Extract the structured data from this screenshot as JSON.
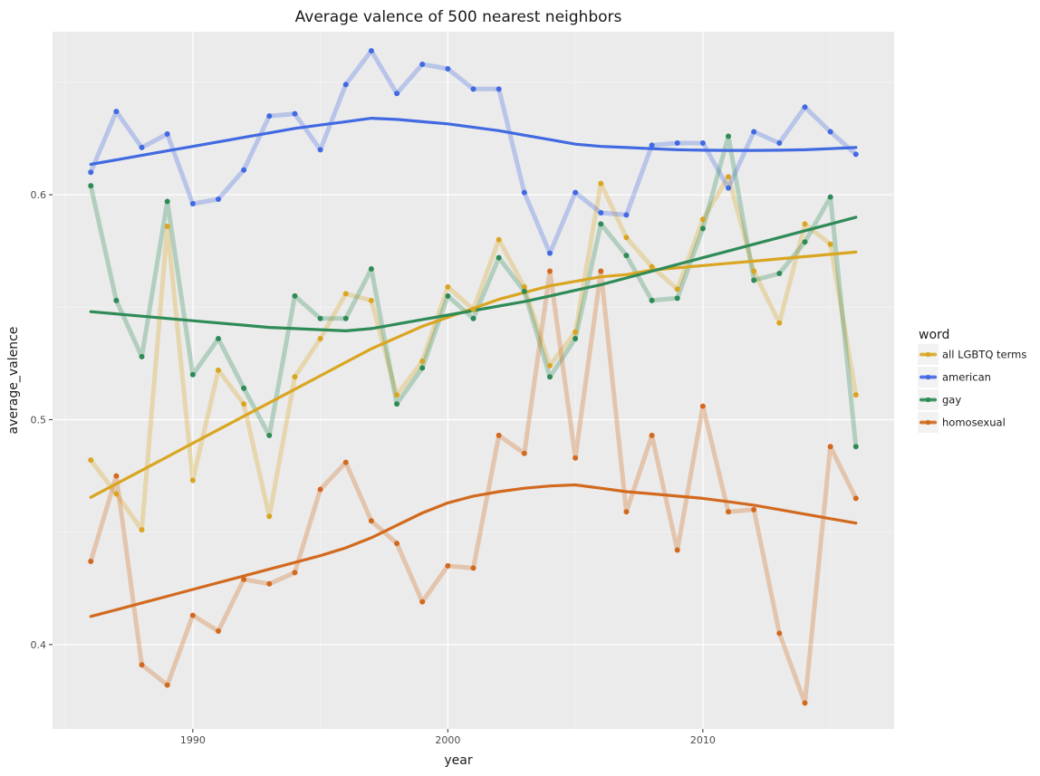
{
  "chart_data": {
    "type": "line",
    "title": "Average valence of 500 nearest neighbors",
    "xlabel": "year",
    "ylabel": "average_valence",
    "xlim": [
      1984.5,
      2017.5
    ],
    "ylim": [
      0.3625,
      0.6725
    ],
    "x_ticks": [
      1990,
      2000,
      2010
    ],
    "y_ticks": [
      0.4,
      0.5,
      0.6
    ],
    "x_tick_labels": [
      "1990",
      "2000",
      "2010"
    ],
    "y_tick_labels": [
      "0.4",
      "0.5",
      "0.6"
    ],
    "grid": true,
    "legend": {
      "title": "word",
      "position": "right"
    },
    "x": [
      1986,
      1987,
      1988,
      1989,
      1990,
      1991,
      1992,
      1993,
      1994,
      1995,
      1996,
      1997,
      1998,
      1999,
      2000,
      2001,
      2002,
      2003,
      2004,
      2005,
      2006,
      2007,
      2008,
      2009,
      2010,
      2011,
      2012,
      2013,
      2014,
      2015,
      2016
    ],
    "series": [
      {
        "name": "all LGBTQ terms",
        "color": "#DAA520",
        "values": [
          0.482,
          0.467,
          0.451,
          0.586,
          0.473,
          0.522,
          0.507,
          0.457,
          0.519,
          0.536,
          0.556,
          0.553,
          0.511,
          0.526,
          0.559,
          0.549,
          0.58,
          0.559,
          0.524,
          0.539,
          0.605,
          0.581,
          0.568,
          0.558,
          0.589,
          0.608,
          0.566,
          0.543,
          0.587,
          0.578,
          0.511
        ],
        "smooth": [
          0.4655,
          0.4715,
          0.4775,
          0.4835,
          0.4895,
          0.4955,
          0.5015,
          0.5075,
          0.5135,
          0.5195,
          0.5255,
          0.5315,
          0.5365,
          0.5415,
          0.5455,
          0.5495,
          0.5535,
          0.5565,
          0.5595,
          0.5615,
          0.5635,
          0.5645,
          0.5665,
          0.5675,
          0.5685,
          0.5695,
          0.5705,
          0.5715,
          0.5725,
          0.5735,
          0.5745
        ]
      },
      {
        "name": "american",
        "color": "#4169E1",
        "values": [
          0.61,
          0.637,
          0.621,
          0.627,
          0.596,
          0.598,
          0.611,
          0.635,
          0.636,
          0.62,
          0.649,
          0.664,
          0.645,
          0.658,
          0.656,
          0.647,
          0.647,
          0.601,
          0.574,
          0.601,
          0.592,
          0.591,
          0.622,
          0.623,
          0.623,
          0.603,
          0.628,
          0.623,
          0.639,
          0.628,
          0.618
        ],
        "smooth": [
          0.6135,
          0.6155,
          0.6175,
          0.6195,
          0.6215,
          0.6235,
          0.6255,
          0.6275,
          0.6295,
          0.631,
          0.6325,
          0.634,
          0.6335,
          0.6325,
          0.6315,
          0.63,
          0.6285,
          0.6265,
          0.6245,
          0.6225,
          0.6215,
          0.621,
          0.6205,
          0.62,
          0.6198,
          0.6197,
          0.6197,
          0.6198,
          0.62,
          0.6205,
          0.621
        ]
      },
      {
        "name": "gay",
        "color": "#2E8B57",
        "values": [
          0.604,
          0.553,
          0.528,
          0.597,
          0.52,
          0.536,
          0.514,
          0.493,
          0.555,
          0.545,
          0.545,
          0.567,
          0.507,
          0.523,
          0.555,
          0.545,
          0.572,
          0.557,
          0.519,
          0.536,
          0.587,
          0.573,
          0.553,
          0.554,
          0.585,
          0.626,
          0.562,
          0.565,
          0.579,
          0.599,
          0.488
        ],
        "smooth": [
          0.548,
          0.547,
          0.546,
          0.545,
          0.544,
          0.543,
          0.542,
          0.541,
          0.5405,
          0.54,
          0.5395,
          0.5405,
          0.5425,
          0.5445,
          0.5465,
          0.5485,
          0.5505,
          0.5525,
          0.555,
          0.5575,
          0.56,
          0.563,
          0.566,
          0.569,
          0.572,
          0.575,
          0.578,
          0.581,
          0.584,
          0.587,
          0.59
        ]
      },
      {
        "name": "homosexual",
        "color": "#D2691E",
        "values": [
          0.437,
          0.475,
          0.391,
          0.382,
          0.413,
          0.406,
          0.429,
          0.427,
          0.432,
          0.469,
          0.481,
          0.455,
          0.445,
          0.419,
          0.435,
          0.434,
          0.493,
          0.485,
          0.566,
          0.483,
          0.566,
          0.459,
          0.493,
          0.442,
          0.506,
          0.459,
          0.46,
          0.405,
          0.374,
          0.488,
          0.465
        ],
        "smooth": [
          0.4125,
          0.4155,
          0.4185,
          0.4215,
          0.4245,
          0.4275,
          0.4305,
          0.4335,
          0.4365,
          0.4395,
          0.443,
          0.4475,
          0.453,
          0.4585,
          0.463,
          0.466,
          0.468,
          0.4695,
          0.4705,
          0.471,
          0.4695,
          0.468,
          0.467,
          0.466,
          0.465,
          0.4635,
          0.462,
          0.46,
          0.458,
          0.456,
          0.454
        ]
      }
    ]
  }
}
